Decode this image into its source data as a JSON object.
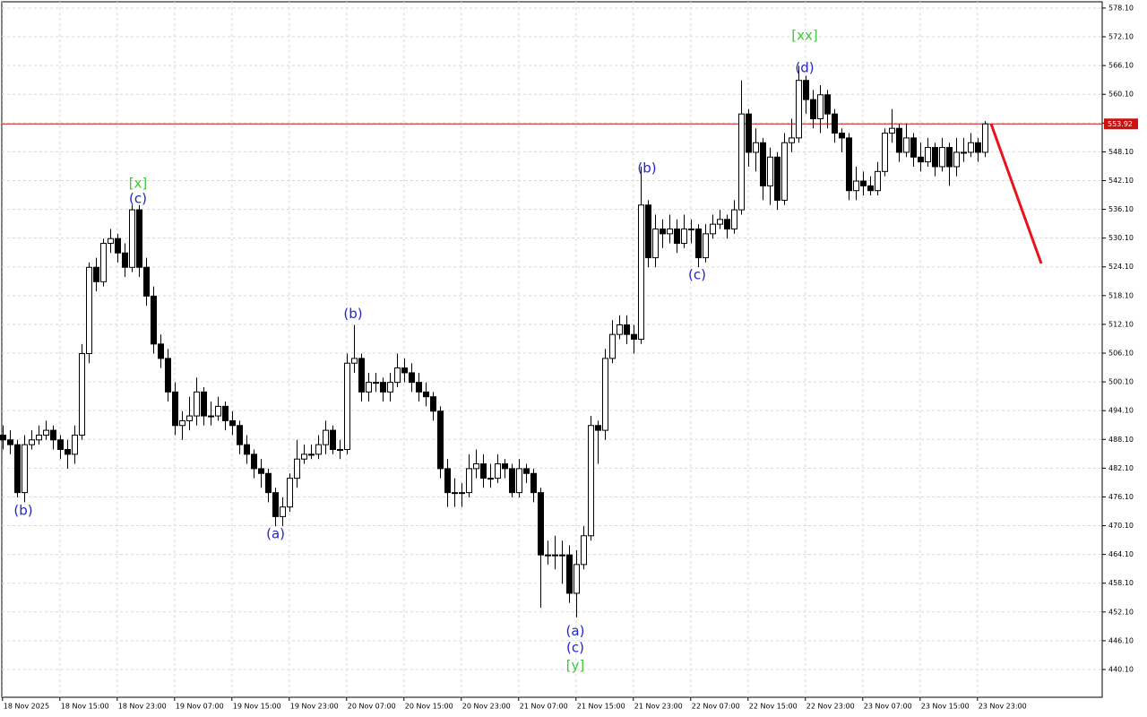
{
  "chart_data": {
    "type": "candlestick",
    "ylim": [
      434.3,
      579.4
    ],
    "yticks": [
      {
        "value": 578.1,
        "label": "578.10"
      },
      {
        "value": 572.1,
        "label": "572.10"
      },
      {
        "value": 566.1,
        "label": "566.10"
      },
      {
        "value": 560.1,
        "label": "560.10"
      },
      {
        "value": 554.1,
        "label": "554.10"
      },
      {
        "value": 548.1,
        "label": "548.10"
      },
      {
        "value": 542.1,
        "label": "542.10"
      },
      {
        "value": 536.1,
        "label": "536.10"
      },
      {
        "value": 530.1,
        "label": "530.10"
      },
      {
        "value": 524.1,
        "label": "524.10"
      },
      {
        "value": 518.1,
        "label": "518.10"
      },
      {
        "value": 512.1,
        "label": "512.10"
      },
      {
        "value": 506.1,
        "label": "506.10"
      },
      {
        "value": 500.1,
        "label": "500.10"
      },
      {
        "value": 494.1,
        "label": "494.10"
      },
      {
        "value": 488.1,
        "label": "488.10"
      },
      {
        "value": 482.1,
        "label": "482.10"
      },
      {
        "value": 476.1,
        "label": "476.10"
      },
      {
        "value": 470.1,
        "label": "470.10"
      },
      {
        "value": 464.1,
        "label": "464.10"
      },
      {
        "value": 458.1,
        "label": "458.10"
      },
      {
        "value": 452.1,
        "label": "452.10"
      },
      {
        "value": 446.1,
        "label": "446.10"
      },
      {
        "value": 440.1,
        "label": "440.10"
      }
    ],
    "xlim": [
      -0.1,
      153.4
    ],
    "xticks": [
      {
        "value": 0,
        "label": "18 Nov 2025"
      },
      {
        "value": 8,
        "label": "18 Nov 15:00"
      },
      {
        "value": 16,
        "label": "18 Nov 23:00"
      },
      {
        "value": 24,
        "label": "19 Nov 07:00"
      },
      {
        "value": 32,
        "label": "19 Nov 15:00"
      },
      {
        "value": 40,
        "label": "19 Nov 23:00"
      },
      {
        "value": 48,
        "label": "20 Nov 07:00"
      },
      {
        "value": 56,
        "label": "20 Nov 15:00"
      },
      {
        "value": 64,
        "label": "20 Nov 23:00"
      },
      {
        "value": 72,
        "label": "21 Nov 07:00"
      },
      {
        "value": 80,
        "label": "21 Nov 15:00"
      },
      {
        "value": 88,
        "label": "21 Nov 23:00"
      },
      {
        "value": 96,
        "label": "22 Nov 07:00"
      },
      {
        "value": 104,
        "label": "22 Nov 15:00"
      },
      {
        "value": 112,
        "label": "22 Nov 23:00"
      },
      {
        "value": 120,
        "label": "23 Nov 07:00"
      },
      {
        "value": 128,
        "label": "23 Nov 15:00"
      },
      {
        "value": 136,
        "label": "23 Nov 23:00"
      }
    ],
    "grid": true,
    "open": [
      489,
      488,
      487,
      477,
      487,
      488,
      489,
      490,
      488,
      486,
      485,
      489,
      506,
      524,
      521,
      529,
      530,
      527,
      524,
      536,
      524,
      518,
      508,
      505,
      498,
      491,
      492,
      493,
      498,
      493,
      493,
      495,
      492,
      491,
      487,
      485,
      482,
      481,
      477,
      472,
      474,
      480,
      484,
      485,
      485,
      487,
      490,
      486,
      486,
      504,
      505,
      498,
      500,
      500,
      498,
      500,
      503,
      502,
      500,
      498,
      497,
      494,
      482,
      477,
      477,
      477,
      482,
      483,
      480,
      480,
      483,
      482,
      477,
      482,
      481,
      477,
      464,
      464,
      464,
      464,
      456,
      462,
      468,
      491,
      490,
      505,
      510,
      512,
      510,
      509,
      537,
      526,
      532,
      531,
      532,
      529,
      532,
      532,
      526,
      531,
      533,
      534,
      532,
      536,
      556,
      548,
      550,
      541,
      547,
      538,
      550,
      551,
      563,
      559,
      555,
      560,
      556,
      552,
      551,
      540,
      542,
      541,
      540,
      544,
      552,
      553,
      548,
      551,
      547,
      546,
      549,
      545,
      549,
      545,
      548,
      548,
      550,
      548
    ],
    "high": [
      491,
      490,
      488,
      489,
      490,
      491,
      492,
      491,
      489,
      488,
      491,
      508,
      525,
      526,
      530,
      532,
      531,
      529,
      537,
      537,
      526,
      520,
      510,
      507,
      500,
      494,
      497,
      501,
      499,
      496,
      497,
      496,
      494,
      492,
      489,
      486,
      484,
      482,
      478,
      476,
      481,
      488,
      487,
      487,
      489,
      492,
      491,
      488,
      506,
      512,
      506,
      502,
      502,
      501,
      502,
      506,
      505,
      504,
      502,
      500,
      498,
      495,
      484,
      480,
      479,
      485,
      486,
      485,
      483,
      485,
      484,
      483,
      484,
      483,
      482,
      478,
      467,
      468,
      467,
      466,
      465,
      470,
      493,
      492,
      507,
      513,
      514,
      514,
      512,
      545,
      538,
      535,
      534,
      535,
      534,
      535,
      534,
      533,
      533,
      535,
      536,
      535,
      538,
      563,
      557,
      553,
      551,
      549,
      548,
      552,
      555,
      566,
      564,
      561,
      562,
      561,
      557,
      553,
      552,
      545,
      544,
      543,
      546,
      553,
      557,
      554,
      554,
      552,
      550,
      551,
      550,
      551,
      550,
      551,
      551,
      552,
      551,
      554.5
    ],
    "low": [
      486,
      485,
      476,
      475,
      486,
      487,
      488,
      486,
      484,
      482,
      483,
      488,
      504,
      519,
      520,
      527,
      525,
      522,
      523,
      522,
      516,
      506,
      503,
      496,
      489,
      488,
      490,
      491,
      491,
      491,
      492,
      490,
      489,
      485,
      483,
      480,
      478,
      475,
      470,
      470,
      473,
      478,
      483,
      484,
      484,
      485,
      485,
      484,
      485,
      502,
      496,
      496,
      498,
      496,
      496,
      499,
      500,
      498,
      496,
      495,
      492,
      480,
      474,
      474,
      474,
      476,
      480,
      478,
      478,
      479,
      480,
      476,
      476,
      479,
      475,
      453,
      462,
      461,
      458,
      454,
      451,
      461,
      467,
      483,
      488,
      504,
      509,
      508,
      506,
      508,
      524,
      524,
      528,
      529,
      527,
      528,
      529,
      524,
      525,
      530,
      532,
      530,
      531,
      535,
      545,
      544,
      538,
      537,
      536,
      537,
      548,
      550,
      556,
      553,
      552,
      553,
      550,
      548,
      538,
      538,
      539,
      539,
      539,
      543,
      550,
      546,
      547,
      545,
      544,
      545,
      543,
      544,
      541,
      543,
      546,
      547,
      546,
      547
    ],
    "close": [
      488,
      487,
      477,
      487,
      488,
      489,
      490,
      488,
      486,
      485,
      489,
      506,
      524,
      521,
      529,
      530,
      527,
      524,
      536,
      524,
      518,
      508,
      505,
      498,
      491,
      492,
      493,
      498,
      493,
      493,
      495,
      492,
      491,
      487,
      485,
      482,
      481,
      477,
      472,
      474,
      480,
      484,
      485,
      485,
      487,
      490,
      486,
      486,
      504,
      505,
      498,
      500,
      500,
      498,
      500,
      503,
      502,
      500,
      498,
      497,
      494,
      482,
      477,
      477,
      477,
      482,
      483,
      480,
      480,
      483,
      482,
      477,
      482,
      481,
      477,
      464,
      464,
      464,
      464,
      456,
      462,
      468,
      491,
      490,
      505,
      510,
      512,
      510,
      509,
      537,
      526,
      532,
      531,
      532,
      529,
      532,
      532,
      526,
      531,
      533,
      534,
      532,
      536,
      556,
      548,
      550,
      541,
      547,
      538,
      550,
      551,
      563,
      559,
      555,
      560,
      556,
      552,
      551,
      540,
      542,
      541,
      540,
      544,
      552,
      553,
      548,
      551,
      547,
      546,
      549,
      545,
      549,
      545,
      548,
      548,
      550,
      548,
      553.92
    ],
    "last_price": 553.92,
    "forecast": {
      "color": "#e8141b",
      "x": [
        137.9,
        144.9
      ],
      "y": [
        553.92,
        524.8
      ]
    },
    "annotations": [
      {
        "text": "(b)",
        "color": "#2323d2",
        "x": 2.9,
        "y": 473.2
      },
      {
        "text": "[x]",
        "color": "#3dc93d",
        "x": 18.9,
        "y": 541.4
      },
      {
        "text": "(c)",
        "color": "#2323d2",
        "x": 18.9,
        "y": 538.3
      },
      {
        "text": "(a)",
        "color": "#2323d2",
        "x": 38.1,
        "y": 468.3
      },
      {
        "text": "(b)",
        "color": "#2323d2",
        "x": 48.9,
        "y": 514.2
      },
      {
        "text": "(a)",
        "color": "#2323d2",
        "x": 79.9,
        "y": 448.0
      },
      {
        "text": "(c)",
        "color": "#2323d2",
        "x": 79.9,
        "y": 444.6
      },
      {
        "text": "[y]",
        "color": "#3dc93d",
        "x": 79.9,
        "y": 440.8
      },
      {
        "text": "(b)",
        "color": "#2323d2",
        "x": 89.9,
        "y": 544.6
      },
      {
        "text": "(c)",
        "color": "#2323d2",
        "x": 96.9,
        "y": 522.4
      },
      {
        "text": "[xx]",
        "color": "#3dc93d",
        "x": 111.9,
        "y": 572.3
      },
      {
        "text": "(d)",
        "color": "#2323d2",
        "x": 111.9,
        "y": 565.6
      }
    ]
  }
}
